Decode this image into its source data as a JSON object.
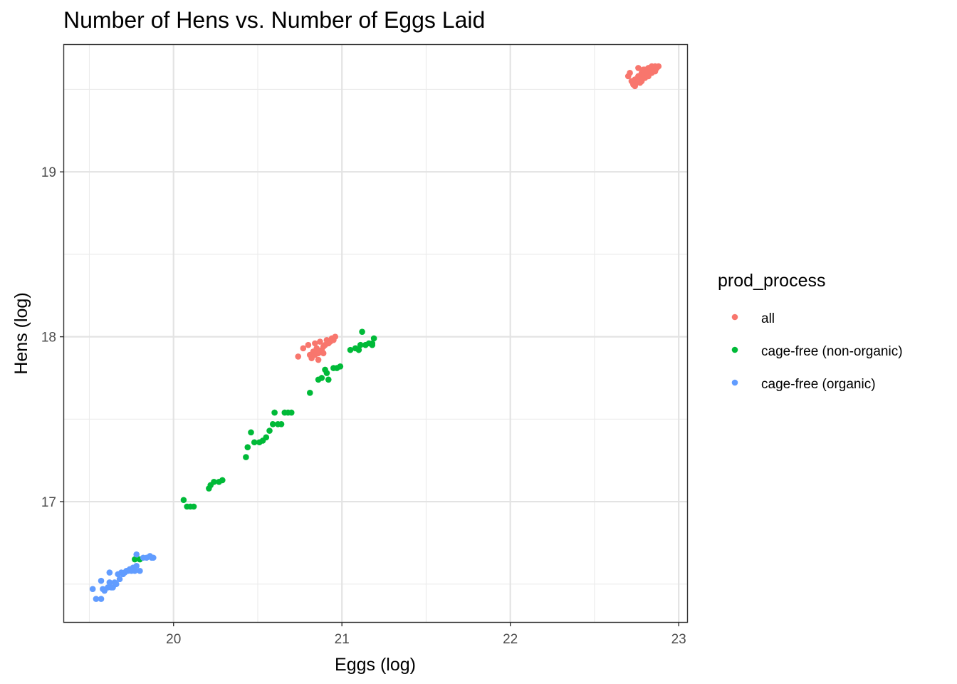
{
  "chart_data": {
    "type": "scatter",
    "title": "Number of Hens vs. Number of Eggs Laid",
    "xlabel": "Eggs (log)",
    "ylabel": "Hens (log)",
    "xlim": [
      19.35,
      23.05
    ],
    "ylim": [
      16.27,
      19.77
    ],
    "x_ticks": [
      20,
      21,
      22,
      23
    ],
    "y_ticks": [
      17,
      18,
      19
    ],
    "grid": true,
    "legend": {
      "title": "prod_process",
      "position": "right"
    },
    "series": [
      {
        "name": "all",
        "color": "#F8766D",
        "points": [
          [
            22.7,
            19.58
          ],
          [
            22.71,
            19.6
          ],
          [
            22.72,
            19.55
          ],
          [
            22.73,
            19.53
          ],
          [
            22.74,
            19.56
          ],
          [
            22.75,
            19.54
          ],
          [
            22.76,
            19.58
          ],
          [
            22.76,
            19.63
          ],
          [
            22.77,
            19.57
          ],
          [
            22.78,
            19.6
          ],
          [
            22.78,
            19.55
          ],
          [
            22.79,
            19.59
          ],
          [
            22.8,
            19.62
          ],
          [
            22.8,
            19.57
          ],
          [
            22.81,
            19.6
          ],
          [
            22.82,
            19.63
          ],
          [
            22.82,
            19.58
          ],
          [
            22.83,
            19.61
          ],
          [
            22.84,
            19.64
          ],
          [
            22.84,
            19.6
          ],
          [
            22.85,
            19.62
          ],
          [
            22.86,
            19.64
          ],
          [
            22.86,
            19.61
          ],
          [
            22.87,
            19.63
          ],
          [
            22.88,
            19.64
          ],
          [
            22.79,
            19.62
          ],
          [
            22.74,
            19.52
          ],
          [
            22.77,
            19.54
          ],
          [
            20.74,
            17.88
          ],
          [
            20.77,
            17.93
          ],
          [
            20.8,
            17.95
          ],
          [
            20.82,
            17.87
          ],
          [
            20.83,
            17.91
          ],
          [
            20.84,
            17.89
          ],
          [
            20.85,
            17.93
          ],
          [
            20.86,
            17.9
          ],
          [
            20.86,
            17.86
          ],
          [
            20.87,
            17.97
          ],
          [
            20.88,
            17.92
          ],
          [
            20.89,
            17.94
          ],
          [
            20.9,
            17.95
          ],
          [
            20.91,
            17.98
          ],
          [
            20.92,
            17.96
          ],
          [
            20.93,
            17.97
          ],
          [
            20.94,
            17.99
          ],
          [
            20.95,
            17.98
          ],
          [
            20.96,
            18.0
          ],
          [
            20.84,
            17.96
          ],
          [
            20.89,
            17.9
          ],
          [
            20.81,
            17.89
          ]
        ]
      },
      {
        "name": "cage-free (non-organic)",
        "color": "#00BA38",
        "points": [
          [
            19.77,
            16.65
          ],
          [
            19.8,
            16.65
          ],
          [
            20.06,
            17.01
          ],
          [
            20.08,
            16.97
          ],
          [
            20.1,
            16.97
          ],
          [
            20.12,
            16.97
          ],
          [
            20.21,
            17.08
          ],
          [
            20.22,
            17.1
          ],
          [
            20.24,
            17.12
          ],
          [
            20.27,
            17.12
          ],
          [
            20.29,
            17.13
          ],
          [
            20.43,
            17.27
          ],
          [
            20.44,
            17.33
          ],
          [
            20.46,
            17.42
          ],
          [
            20.48,
            17.36
          ],
          [
            20.51,
            17.36
          ],
          [
            20.53,
            17.37
          ],
          [
            20.55,
            17.39
          ],
          [
            20.57,
            17.43
          ],
          [
            20.59,
            17.47
          ],
          [
            20.6,
            17.54
          ],
          [
            20.62,
            17.47
          ],
          [
            20.64,
            17.47
          ],
          [
            20.66,
            17.54
          ],
          [
            20.68,
            17.54
          ],
          [
            20.7,
            17.54
          ],
          [
            20.81,
            17.66
          ],
          [
            20.86,
            17.74
          ],
          [
            20.88,
            17.75
          ],
          [
            20.9,
            17.8
          ],
          [
            20.91,
            17.78
          ],
          [
            20.92,
            17.74
          ],
          [
            20.95,
            17.81
          ],
          [
            20.97,
            17.81
          ],
          [
            20.99,
            17.82
          ],
          [
            21.05,
            17.92
          ],
          [
            21.08,
            17.93
          ],
          [
            21.1,
            17.92
          ],
          [
            21.11,
            17.95
          ],
          [
            21.12,
            18.03
          ],
          [
            21.14,
            17.95
          ],
          [
            21.16,
            17.96
          ],
          [
            21.18,
            17.96
          ],
          [
            21.19,
            17.99
          ],
          [
            21.18,
            17.95
          ]
        ]
      },
      {
        "name": "cage-free (organic)",
        "color": "#619CFF",
        "points": [
          [
            19.52,
            16.47
          ],
          [
            19.54,
            16.41
          ],
          [
            19.57,
            16.41
          ],
          [
            19.57,
            16.52
          ],
          [
            19.58,
            16.47
          ],
          [
            19.59,
            16.46
          ],
          [
            19.61,
            16.48
          ],
          [
            19.62,
            16.51
          ],
          [
            19.62,
            16.57
          ],
          [
            19.63,
            16.48
          ],
          [
            19.64,
            16.48
          ],
          [
            19.65,
            16.51
          ],
          [
            19.66,
            16.5
          ],
          [
            19.67,
            16.56
          ],
          [
            19.68,
            16.53
          ],
          [
            19.69,
            16.57
          ],
          [
            19.7,
            16.56
          ],
          [
            19.71,
            16.57
          ],
          [
            19.72,
            16.58
          ],
          [
            19.73,
            16.58
          ],
          [
            19.74,
            16.59
          ],
          [
            19.75,
            16.58
          ],
          [
            19.76,
            16.6
          ],
          [
            19.77,
            16.58
          ],
          [
            19.78,
            16.61
          ],
          [
            19.78,
            16.68
          ],
          [
            19.8,
            16.58
          ],
          [
            19.82,
            16.66
          ],
          [
            19.84,
            16.66
          ],
          [
            19.86,
            16.67
          ],
          [
            19.87,
            16.66
          ],
          [
            19.88,
            16.66
          ]
        ]
      }
    ]
  }
}
